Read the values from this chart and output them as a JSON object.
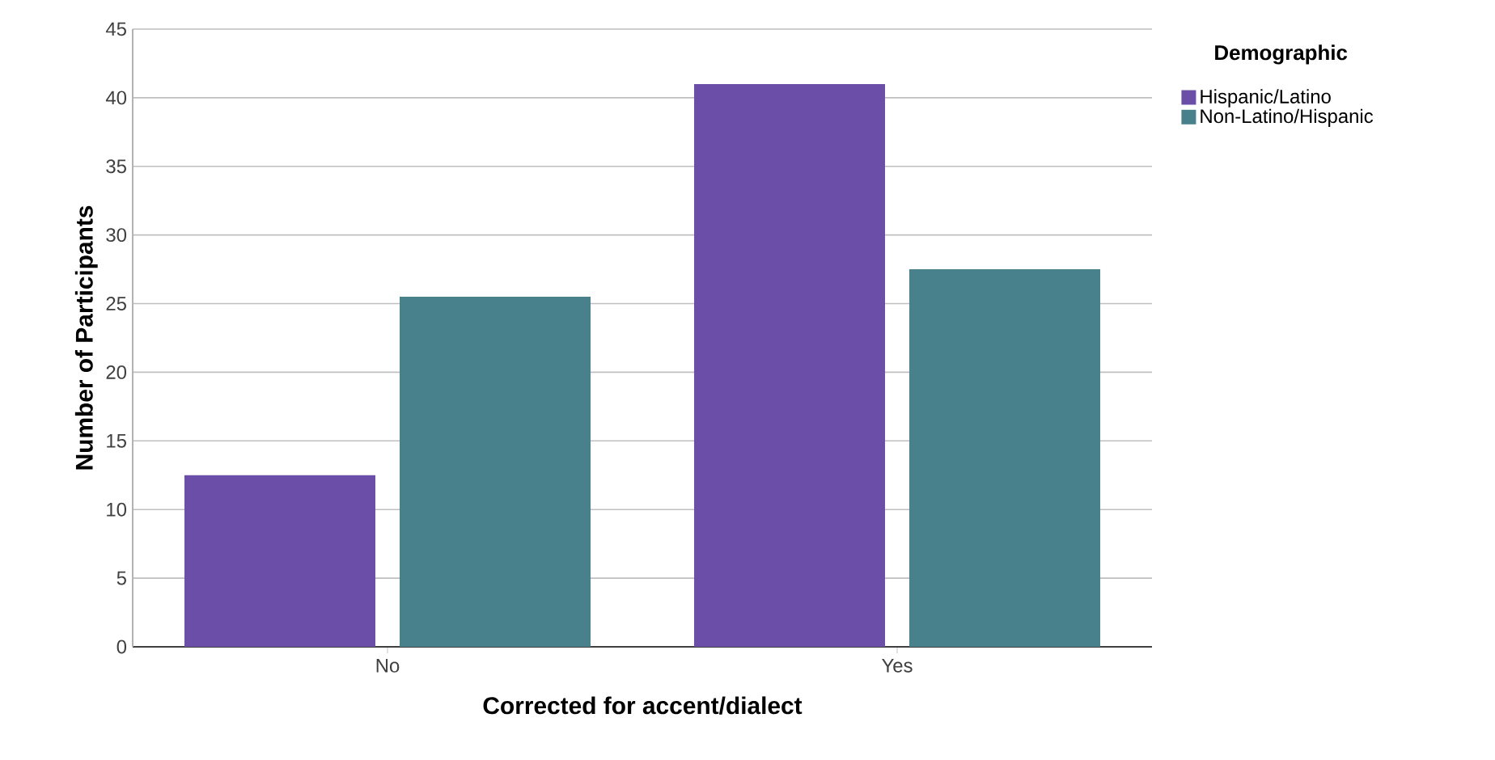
{
  "chart_data": {
    "type": "bar",
    "xlabel": "Corrected for accent/dialect",
    "ylabel": "Number of Participants",
    "legend_title": "Demographic",
    "categories": [
      "No",
      "Yes"
    ],
    "series": [
      {
        "name": "Hispanic/Latino",
        "color": "#6a4ea8",
        "values": [
          12.5,
          41
        ]
      },
      {
        "name": "Non-Latino/Hispanic",
        "color": "#48808c",
        "values": [
          25.5,
          27.5
        ]
      }
    ],
    "ylim": [
      0,
      45
    ],
    "yticks": [
      0,
      5,
      10,
      15,
      20,
      25,
      30,
      35,
      40,
      45
    ],
    "grid": "y",
    "legend": "top right"
  }
}
